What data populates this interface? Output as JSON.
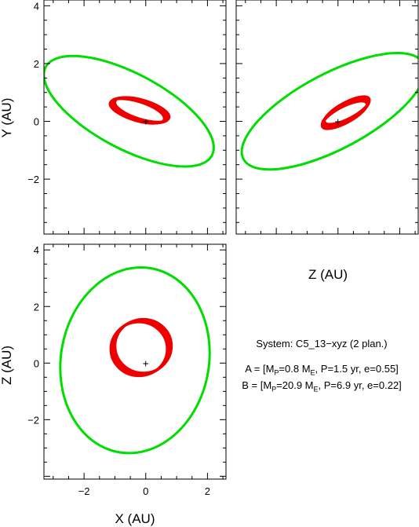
{
  "chart_data": [
    {
      "type": "line",
      "panel": "top-left",
      "xlabel": "",
      "ylabel": "Y (AU)",
      "xlim": [
        -3.3,
        2.6
      ],
      "ylim": [
        -3.9,
        4.2
      ],
      "xticklabels": [],
      "yticks": [
        -2,
        0,
        2,
        4
      ],
      "yticklabels": [
        "−2",
        "0",
        "2",
        "4"
      ],
      "series": [
        {
          "color": "#00dd00",
          "shape": "ellipse",
          "center": [
            -0.55,
            0.35
          ],
          "semi_axes": [
            3.05,
            1.3
          ],
          "rotation_deg": -28
        },
        {
          "color": "#ee0000",
          "shape": "band",
          "center": [
            -0.2,
            0.38
          ],
          "semi_axes": [
            0.95,
            0.33
          ],
          "rotation_deg": -17
        },
        {
          "shape": "star",
          "label": "+",
          "point": [
            0,
            0
          ]
        }
      ]
    },
    {
      "type": "line",
      "panel": "top-right",
      "xlabel": "Z (AU)",
      "ylabel": "",
      "xlim": [
        -3.3,
        2.6
      ],
      "ylim": [
        -3.9,
        4.2
      ],
      "xticklabels": [],
      "yticklabels": [],
      "series": [
        {
          "color": "#00dd00",
          "shape": "ellipse",
          "center": [
            -0.15,
            0.35
          ],
          "semi_axes": [
            3.3,
            1.3
          ],
          "rotation_deg": 28
        },
        {
          "color": "#ee0000",
          "shape": "band",
          "center": [
            0.25,
            0.3
          ],
          "semi_axes": [
            0.85,
            0.28
          ],
          "rotation_deg": 28
        },
        {
          "shape": "star",
          "label": "+",
          "point": [
            0,
            0
          ]
        }
      ]
    },
    {
      "type": "line",
      "panel": "bottom-left",
      "xlabel": "X (AU)",
      "ylabel": "Z (AU)",
      "xlim": [
        -3.3,
        2.6
      ],
      "ylim": [
        -4.1,
        4.2
      ],
      "xticks": [
        -2,
        0,
        2
      ],
      "xticklabels": [
        "−2",
        "0",
        "2"
      ],
      "yticks": [
        -2,
        0,
        2,
        4
      ],
      "yticklabels": [
        "−2",
        "0",
        "2",
        "4"
      ],
      "series": [
        {
          "color": "#00dd00",
          "shape": "ellipse",
          "center": [
            -0.35,
            0.1
          ],
          "semi_axes": [
            2.4,
            3.3
          ],
          "rotation_deg": -10
        },
        {
          "color": "#ee0000",
          "shape": "band",
          "center": [
            -0.15,
            0.55
          ],
          "semi_axes": [
            0.95,
            0.95
          ],
          "rotation_deg": 0
        },
        {
          "shape": "star",
          "label": "+",
          "point": [
            0,
            0
          ]
        }
      ]
    }
  ],
  "info": {
    "system": "System: C5_13−xyz (2 plan.)",
    "planet_a": {
      "prefix": "A = [M",
      "sub1": "P",
      "mid": "=0.8 M",
      "sub2": "E",
      "suffix": ", P=1.5 yr, e=0.55]"
    },
    "planet_b": {
      "prefix": "B = [M",
      "sub1": "P",
      "mid": "=20.9 M",
      "sub2": "E",
      "suffix": ", P=6.9 yr, e=0.22]"
    }
  }
}
